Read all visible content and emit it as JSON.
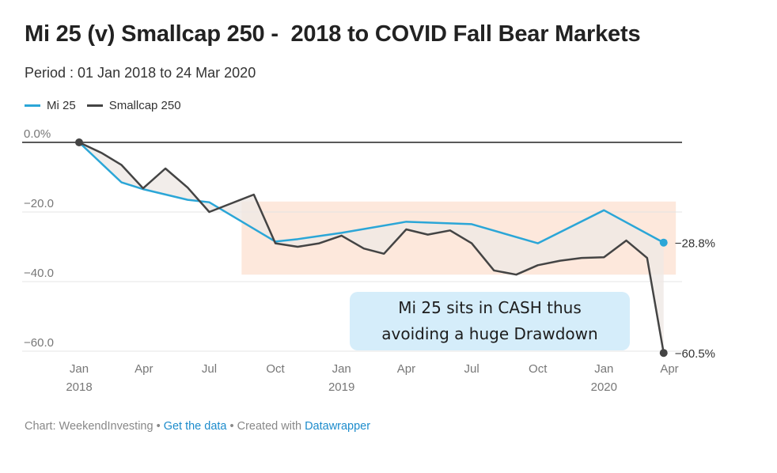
{
  "title": "Mi 25 (v) Smallcap 250 -  2018 to COVID Fall Bear Markets",
  "subtitle": "Period : 01 Jan 2018 to 24 Mar 2020",
  "colors": {
    "mi25": "#2ba6d7",
    "smallcap": "#444444",
    "band": "#fde8dc",
    "between": "#efe9e5",
    "zero": "#222222",
    "grid": "#e4e4e4"
  },
  "callout": {
    "line1": "Mi 25 sits in CASH thus",
    "line2": "avoiding a huge Drawdown"
  },
  "footer": {
    "source": "Chart: WeekendInvesting",
    "sep1": " • ",
    "get_data": "Get the data",
    "sep2": " • Created with ",
    "tool": "Datawrapper"
  },
  "chart_data": {
    "type": "line",
    "title": "Mi 25 (v) Smallcap 250 -  2018 to COVID Fall Bear Markets",
    "ylim": [
      -60,
      0
    ],
    "xlim": [
      "2018-01-01",
      "2020-04-01"
    ],
    "yticks": [
      {
        "value": 0,
        "label": "0.0%"
      },
      {
        "value": -20,
        "label": "−20.0"
      },
      {
        "value": -40,
        "label": "−40.0"
      },
      {
        "value": -60,
        "label": "−60.0"
      }
    ],
    "xticks": [
      {
        "date": "2018-01-01",
        "label": "Jan",
        "year": "2018"
      },
      {
        "date": "2018-04-01",
        "label": "Apr",
        "year": ""
      },
      {
        "date": "2018-07-01",
        "label": "Jul",
        "year": ""
      },
      {
        "date": "2018-10-01",
        "label": "Oct",
        "year": ""
      },
      {
        "date": "2019-01-01",
        "label": "Jan",
        "year": "2019"
      },
      {
        "date": "2019-04-01",
        "label": "Apr",
        "year": ""
      },
      {
        "date": "2019-07-01",
        "label": "Jul",
        "year": ""
      },
      {
        "date": "2019-10-01",
        "label": "Oct",
        "year": ""
      },
      {
        "date": "2020-01-01",
        "label": "Jan",
        "year": "2020"
      },
      {
        "date": "2020-04-01",
        "label": "Apr",
        "year": ""
      }
    ],
    "grid": true,
    "legend_position": "top-left",
    "highlight_range": {
      "x": [
        "2018-08-15",
        "2020-04-10"
      ],
      "y": [
        -17,
        -38
      ]
    },
    "series": [
      {
        "name": "Mi 25",
        "end_label": "−28.8%",
        "points": [
          [
            "2018-01-01",
            0
          ],
          [
            "2018-03-01",
            -11.5
          ],
          [
            "2018-04-01",
            -13.5
          ],
          [
            "2018-06-01",
            -16.5
          ],
          [
            "2018-07-01",
            -17.2
          ],
          [
            "2018-10-01",
            -28.5
          ],
          [
            "2018-11-01",
            -27.8
          ],
          [
            "2019-01-01",
            -26
          ],
          [
            "2019-04-01",
            -22.8
          ],
          [
            "2019-07-01",
            -23.5
          ],
          [
            "2019-10-01",
            -29
          ],
          [
            "2020-01-01",
            -19.5
          ],
          [
            "2020-03-24",
            -28.8
          ]
        ]
      },
      {
        "name": "Smallcap 250",
        "end_label": "−60.5%",
        "points": [
          [
            "2018-01-01",
            0
          ],
          [
            "2018-02-01",
            -3
          ],
          [
            "2018-03-01",
            -6.5
          ],
          [
            "2018-03-31",
            -13.2
          ],
          [
            "2018-05-01",
            -7.5
          ],
          [
            "2018-06-01",
            -13
          ],
          [
            "2018-07-01",
            -20
          ],
          [
            "2018-08-01",
            -17.5
          ],
          [
            "2018-09-01",
            -15
          ],
          [
            "2018-10-01",
            -29
          ],
          [
            "2018-11-01",
            -30
          ],
          [
            "2018-12-01",
            -29
          ],
          [
            "2019-01-01",
            -26.8
          ],
          [
            "2019-02-01",
            -30.5
          ],
          [
            "2019-03-01",
            -32
          ],
          [
            "2019-04-01",
            -25
          ],
          [
            "2019-05-01",
            -26.5
          ],
          [
            "2019-06-01",
            -25.3
          ],
          [
            "2019-07-01",
            -29
          ],
          [
            "2019-08-01",
            -36.8
          ],
          [
            "2019-09-01",
            -38
          ],
          [
            "2019-10-01",
            -35.3
          ],
          [
            "2019-11-01",
            -34
          ],
          [
            "2019-12-01",
            -33.2
          ],
          [
            "2020-01-01",
            -33
          ],
          [
            "2020-02-01",
            -28.2
          ],
          [
            "2020-03-01",
            -33.2
          ],
          [
            "2020-03-24",
            -60.5
          ]
        ]
      }
    ]
  }
}
